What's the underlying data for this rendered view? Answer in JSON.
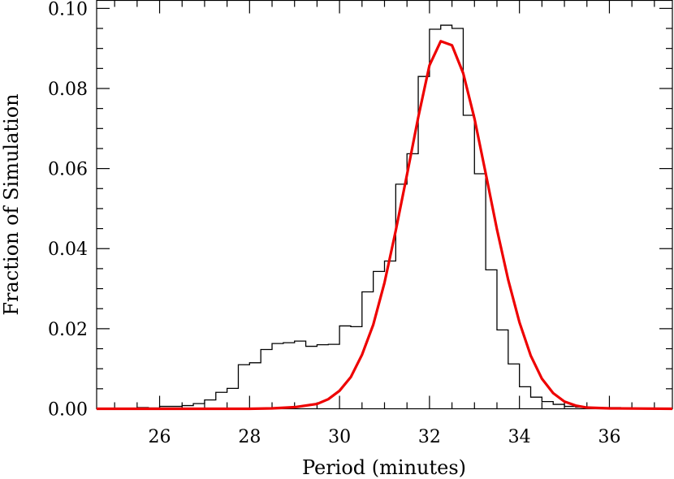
{
  "chart_data": {
    "type": "histogram",
    "title": "",
    "xlabel": "Period (minutes)",
    "ylabel": "Fraction of Simulation",
    "xlim": [
      24.6,
      37.4
    ],
    "ylim": [
      0.0,
      0.102
    ],
    "grid": false,
    "legend": "none",
    "x_ticks": [
      26,
      28,
      30,
      32,
      34,
      36
    ],
    "x_tick_labels": [
      "26",
      "28",
      "30",
      "32",
      "34",
      "36"
    ],
    "y_ticks": [
      0.0,
      0.02,
      0.04,
      0.06,
      0.08,
      0.1
    ],
    "y_tick_labels": [
      "0.00",
      "0.02",
      "0.04",
      "0.06",
      "0.08",
      "0.10"
    ],
    "series": [
      {
        "kind": "histogram",
        "color": "#000000",
        "bin_width": 0.25,
        "bin_start": [
          25.5,
          25.75,
          26.0,
          26.25,
          26.5,
          26.75,
          27.0,
          27.25,
          27.5,
          27.75,
          28.0,
          28.25,
          28.5,
          28.75,
          29.0,
          29.25,
          29.5,
          29.75,
          30.0,
          30.25,
          30.5,
          30.75,
          31.0,
          31.25,
          31.5,
          31.75,
          32.0,
          32.25,
          32.5,
          32.75,
          33.0,
          33.25,
          33.5,
          33.75,
          34.0,
          34.25,
          34.5,
          34.75,
          35.0,
          35.25,
          35.5,
          35.75,
          36.0,
          36.25,
          36.5,
          36.75
        ],
        "values": [
          0.0003,
          0.0002,
          0.0006,
          0.0006,
          0.0008,
          0.0013,
          0.0022,
          0.0041,
          0.0051,
          0.011,
          0.0115,
          0.0148,
          0.0163,
          0.0165,
          0.0169,
          0.0156,
          0.016,
          0.0161,
          0.0207,
          0.0205,
          0.0292,
          0.0343,
          0.0369,
          0.0561,
          0.0637,
          0.083,
          0.0948,
          0.0958,
          0.095,
          0.0733,
          0.0587,
          0.0347,
          0.0197,
          0.0112,
          0.0055,
          0.0029,
          0.0018,
          0.0011,
          0.0006,
          0.0004,
          0.0002,
          0.0001,
          0.0003,
          0.0002,
          0.0001,
          0.0001
        ]
      },
      {
        "kind": "line",
        "color": "#ee0000",
        "x": [
          24.6,
          28.0,
          28.5,
          29.0,
          29.5,
          29.75,
          30.0,
          30.25,
          30.5,
          30.75,
          31.0,
          31.25,
          31.5,
          31.75,
          32.0,
          32.25,
          32.5,
          32.75,
          33.0,
          33.25,
          33.5,
          33.75,
          34.0,
          34.25,
          34.5,
          34.75,
          35.0,
          35.25,
          35.5,
          36.0,
          37.4
        ],
        "y": [
          0.0,
          0.0,
          0.0001,
          0.0004,
          0.0012,
          0.0024,
          0.0045,
          0.0079,
          0.0135,
          0.021,
          0.0315,
          0.0445,
          0.0585,
          0.0728,
          0.0858,
          0.0918,
          0.0908,
          0.0838,
          0.0725,
          0.0588,
          0.0448,
          0.0322,
          0.0216,
          0.0133,
          0.0075,
          0.0039,
          0.0018,
          0.0008,
          0.0003,
          0.0001,
          0.0
        ]
      }
    ]
  }
}
